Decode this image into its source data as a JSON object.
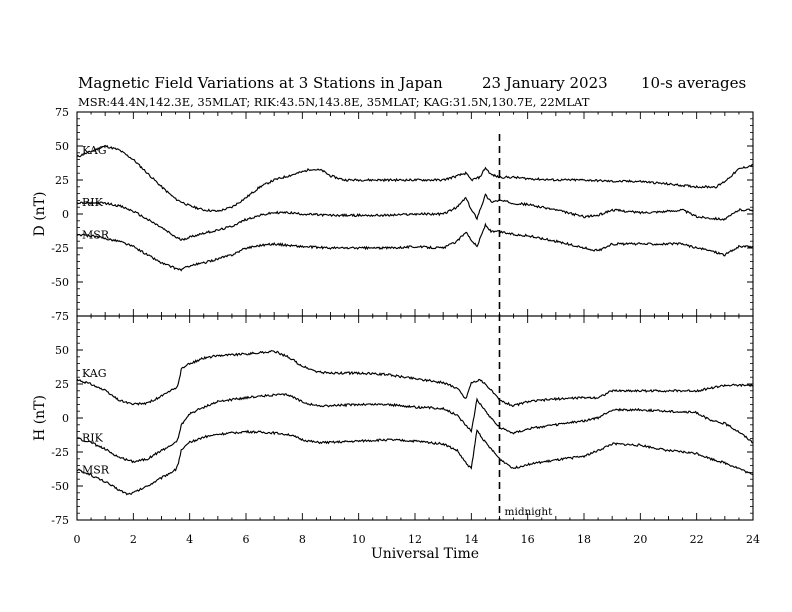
{
  "header": {
    "title": "Magnetic Field Variations at 3 Stations in Japan",
    "date": "23 January  2023",
    "averaging": "10-s averages",
    "stations_line": "MSR:44.4N,142.3E, 35MLAT;  RIK:43.5N,143.8E, 35MLAT;  KAG:31.5N,130.7E, 22MLAT"
  },
  "annotations": {
    "midnight_label": "midnight",
    "midnight_ut": 15
  },
  "chart_data": [
    {
      "type": "line",
      "panel": "D",
      "ylabel": "D (nT)",
      "xlabel": "",
      "xlim": [
        0,
        24
      ],
      "ylim": [
        -75,
        75
      ],
      "yticks": [
        75,
        50,
        25,
        0,
        -25,
        -50,
        -75
      ],
      "xticks": [
        0,
        2,
        4,
        6,
        8,
        10,
        12,
        14,
        16,
        18,
        20,
        22,
        24
      ],
      "series": [
        {
          "name": "KAG",
          "points": [
            [
              0,
              42
            ],
            [
              0.5,
              46
            ],
            [
              1,
              50
            ],
            [
              1.5,
              47
            ],
            [
              2,
              40
            ],
            [
              2.5,
              30
            ],
            [
              3,
              20
            ],
            [
              3.5,
              11
            ],
            [
              4,
              6
            ],
            [
              4.5,
              3
            ],
            [
              5,
              2
            ],
            [
              5.5,
              5
            ],
            [
              6,
              12
            ],
            [
              6.5,
              20
            ],
            [
              7,
              25
            ],
            [
              7.5,
              28
            ],
            [
              8,
              31
            ],
            [
              8.3,
              33
            ],
            [
              8.7,
              32
            ],
            [
              9,
              28
            ],
            [
              9.5,
              25
            ],
            [
              10,
              25
            ],
            [
              11,
              25
            ],
            [
              12,
              25
            ],
            [
              13,
              25
            ],
            [
              13.5,
              28
            ],
            [
              13.8,
              30
            ],
            [
              14,
              25
            ],
            [
              14.3,
              27
            ],
            [
              14.5,
              34
            ],
            [
              14.7,
              29
            ],
            [
              15,
              27
            ],
            [
              15.5,
              27
            ],
            [
              16,
              26
            ],
            [
              17,
              25
            ],
            [
              18,
              25
            ],
            [
              19,
              24
            ],
            [
              20,
              24
            ],
            [
              21,
              22
            ],
            [
              22,
              20
            ],
            [
              22.7,
              20
            ],
            [
              23,
              24
            ],
            [
              23.5,
              33
            ],
            [
              24,
              36
            ]
          ]
        },
        {
          "name": "RIK",
          "points": [
            [
              0,
              8
            ],
            [
              0.5,
              8
            ],
            [
              1,
              8
            ],
            [
              1.5,
              6
            ],
            [
              2,
              2
            ],
            [
              2.5,
              -4
            ],
            [
              3,
              -10
            ],
            [
              3.5,
              -17
            ],
            [
              3.7,
              -19
            ],
            [
              4,
              -17
            ],
            [
              4.5,
              -14
            ],
            [
              5,
              -12
            ],
            [
              5.5,
              -9
            ],
            [
              6,
              -4
            ],
            [
              6.5,
              -1
            ],
            [
              7,
              1
            ],
            [
              7.5,
              1
            ],
            [
              8,
              0
            ],
            [
              9,
              -1
            ],
            [
              10,
              -1
            ],
            [
              11,
              -1
            ],
            [
              12,
              0
            ],
            [
              13,
              0
            ],
            [
              13.5,
              5
            ],
            [
              13.8,
              12
            ],
            [
              14,
              3
            ],
            [
              14.2,
              -3
            ],
            [
              14.5,
              14
            ],
            [
              14.7,
              9
            ],
            [
              15,
              10
            ],
            [
              15.5,
              8
            ],
            [
              16,
              7
            ],
            [
              17,
              3
            ],
            [
              18,
              -2
            ],
            [
              18.5,
              -1
            ],
            [
              19,
              3
            ],
            [
              20,
              1
            ],
            [
              21,
              2
            ],
            [
              21.5,
              3
            ],
            [
              22,
              -2
            ],
            [
              22.5,
              -3
            ],
            [
              23,
              -4
            ],
            [
              23.5,
              3
            ],
            [
              24,
              3
            ]
          ]
        },
        {
          "name": "MSR",
          "points": [
            [
              0,
              -15
            ],
            [
              0.5,
              -16
            ],
            [
              1,
              -18
            ],
            [
              1.5,
              -20
            ],
            [
              2,
              -24
            ],
            [
              2.5,
              -30
            ],
            [
              3,
              -36
            ],
            [
              3.5,
              -40
            ],
            [
              3.7,
              -41
            ],
            [
              4,
              -38
            ],
            [
              4.5,
              -36
            ],
            [
              5,
              -33
            ],
            [
              5.5,
              -30
            ],
            [
              6,
              -25
            ],
            [
              6.5,
              -23
            ],
            [
              7,
              -22
            ],
            [
              7.5,
              -23
            ],
            [
              8,
              -24
            ],
            [
              9,
              -25
            ],
            [
              10,
              -25
            ],
            [
              11,
              -25
            ],
            [
              12,
              -24
            ],
            [
              13,
              -25
            ],
            [
              13.5,
              -20
            ],
            [
              13.8,
              -13
            ],
            [
              14,
              -19
            ],
            [
              14.2,
              -24
            ],
            [
              14.5,
              -8
            ],
            [
              14.7,
              -13
            ],
            [
              15,
              -13
            ],
            [
              15.5,
              -15
            ],
            [
              16,
              -16
            ],
            [
              17,
              -20
            ],
            [
              18,
              -25
            ],
            [
              18.5,
              -27
            ],
            [
              19,
              -22
            ],
            [
              20,
              -22
            ],
            [
              21,
              -22
            ],
            [
              21.5,
              -22
            ],
            [
              22,
              -25
            ],
            [
              22.5,
              -27
            ],
            [
              23,
              -30
            ],
            [
              23.5,
              -24
            ],
            [
              24,
              -24
            ]
          ]
        }
      ]
    },
    {
      "type": "line",
      "panel": "H",
      "ylabel": "H (nT)",
      "xlabel": "Universal Time",
      "xlim": [
        0,
        24
      ],
      "ylim": [
        -75,
        75
      ],
      "yticks": [
        75,
        50,
        25,
        0,
        -25,
        -50,
        -75
      ],
      "xticks": [
        0,
        2,
        4,
        6,
        8,
        10,
        12,
        14,
        16,
        18,
        20,
        22,
        24
      ],
      "series": [
        {
          "name": "KAG",
          "points": [
            [
              0,
              28
            ],
            [
              0.5,
              25
            ],
            [
              1,
              20
            ],
            [
              1.5,
              13
            ],
            [
              2,
              10
            ],
            [
              2.5,
              11
            ],
            [
              3,
              16
            ],
            [
              3.5,
              22
            ],
            [
              3.6,
              25
            ],
            [
              3.7,
              36
            ],
            [
              4,
              40
            ],
            [
              4.5,
              44
            ],
            [
              5,
              46
            ],
            [
              6,
              47
            ],
            [
              7,
              49
            ],
            [
              7.5,
              45
            ],
            [
              8,
              38
            ],
            [
              8.5,
              34
            ],
            [
              9,
              33
            ],
            [
              10,
              33
            ],
            [
              11,
              32
            ],
            [
              12,
              29
            ],
            [
              13,
              26
            ],
            [
              13.5,
              22
            ],
            [
              13.8,
              14
            ],
            [
              14,
              26
            ],
            [
              14.3,
              28
            ],
            [
              14.6,
              23
            ],
            [
              15,
              13
            ],
            [
              15.5,
              9
            ],
            [
              16,
              12
            ],
            [
              17,
              14
            ],
            [
              18,
              15
            ],
            [
              18.5,
              15
            ],
            [
              19,
              20
            ],
            [
              20,
              20
            ],
            [
              21,
              20
            ],
            [
              22,
              20
            ],
            [
              22.5,
              22
            ],
            [
              23,
              24
            ],
            [
              24,
              24
            ]
          ]
        },
        {
          "name": "RIK",
          "points": [
            [
              0,
              -15
            ],
            [
              0.5,
              -18
            ],
            [
              1,
              -23
            ],
            [
              1.5,
              -29
            ],
            [
              2,
              -32
            ],
            [
              2.5,
              -30
            ],
            [
              3,
              -24
            ],
            [
              3.5,
              -18
            ],
            [
              3.6,
              -15
            ],
            [
              3.7,
              -5
            ],
            [
              4,
              3
            ],
            [
              4.5,
              8
            ],
            [
              5,
              12
            ],
            [
              6,
              15
            ],
            [
              7,
              17
            ],
            [
              7.5,
              17
            ],
            [
              8,
              12
            ],
            [
              8.5,
              9
            ],
            [
              9,
              9
            ],
            [
              10,
              10
            ],
            [
              11,
              10
            ],
            [
              12,
              8
            ],
            [
              13,
              7
            ],
            [
              13.5,
              2
            ],
            [
              13.8,
              -5
            ],
            [
              14,
              -10
            ],
            [
              14.2,
              14
            ],
            [
              14.5,
              5
            ],
            [
              15,
              -7
            ],
            [
              15.5,
              -11
            ],
            [
              16,
              -8
            ],
            [
              17,
              -5
            ],
            [
              18,
              -2
            ],
            [
              18.5,
              0
            ],
            [
              19,
              6
            ],
            [
              20,
              6
            ],
            [
              21,
              5
            ],
            [
              22,
              4
            ],
            [
              22.5,
              -2
            ],
            [
              23,
              -4
            ],
            [
              23.5,
              -10
            ],
            [
              24,
              -18
            ]
          ]
        },
        {
          "name": "MSR",
          "points": [
            [
              0,
              -38
            ],
            [
              0.5,
              -42
            ],
            [
              1,
              -47
            ],
            [
              1.5,
              -53
            ],
            [
              1.8,
              -56
            ],
            [
              2,
              -55
            ],
            [
              2.5,
              -50
            ],
            [
              3,
              -44
            ],
            [
              3.5,
              -38
            ],
            [
              3.6,
              -33
            ],
            [
              3.7,
              -24
            ],
            [
              4,
              -18
            ],
            [
              4.5,
              -14
            ],
            [
              5,
              -12
            ],
            [
              6,
              -10
            ],
            [
              7,
              -11
            ],
            [
              7.5,
              -12
            ],
            [
              8,
              -16
            ],
            [
              8.5,
              -18
            ],
            [
              9,
              -18
            ],
            [
              10,
              -17
            ],
            [
              11,
              -16
            ],
            [
              12,
              -17
            ],
            [
              13,
              -19
            ],
            [
              13.5,
              -24
            ],
            [
              13.8,
              -33
            ],
            [
              14,
              -37
            ],
            [
              14.2,
              -9
            ],
            [
              14.5,
              -18
            ],
            [
              15,
              -30
            ],
            [
              15.5,
              -37
            ],
            [
              16,
              -34
            ],
            [
              17,
              -31
            ],
            [
              18,
              -28
            ],
            [
              18.5,
              -24
            ],
            [
              19,
              -19
            ],
            [
              20,
              -20
            ],
            [
              21,
              -24
            ],
            [
              22,
              -26
            ],
            [
              22.5,
              -30
            ],
            [
              23,
              -33
            ],
            [
              23.5,
              -37
            ],
            [
              24,
              -42
            ]
          ]
        }
      ]
    }
  ]
}
